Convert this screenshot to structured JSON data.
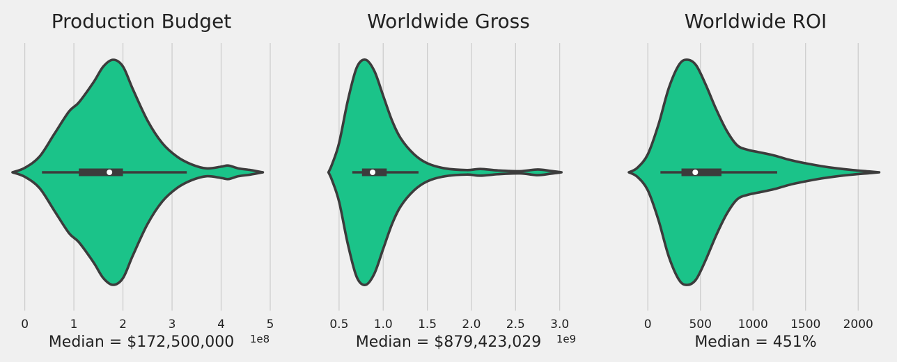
{
  "style": {
    "background": "#f0f0f0",
    "violin_fill": "#1bc389",
    "outline": "#3c3c3c",
    "grid": "#cbcbcb",
    "median_marker": "#ffffff",
    "text": "#222222"
  },
  "chart_data": [
    {
      "type": "violin",
      "title": "Production Budget",
      "xlabel": "Median = $172,500,000",
      "offset_text": "1e8",
      "xlim": [
        -0.25,
        5.0
      ],
      "ticks": [
        0,
        1,
        2,
        3,
        4,
        5
      ],
      "tick_labels": [
        "0",
        "1",
        "2",
        "3",
        "4",
        "5"
      ],
      "grid": true,
      "violin_density": [
        [
          -0.25,
          0.0
        ],
        [
          0.0,
          0.04
        ],
        [
          0.3,
          0.14
        ],
        [
          0.6,
          0.34
        ],
        [
          0.9,
          0.54
        ],
        [
          1.1,
          0.62
        ],
        [
          1.4,
          0.8
        ],
        [
          1.6,
          0.94
        ],
        [
          1.8,
          1.0
        ],
        [
          2.0,
          0.94
        ],
        [
          2.2,
          0.74
        ],
        [
          2.5,
          0.46
        ],
        [
          2.8,
          0.26
        ],
        [
          3.1,
          0.14
        ],
        [
          3.4,
          0.07
        ],
        [
          3.7,
          0.035
        ],
        [
          4.0,
          0.05
        ],
        [
          4.15,
          0.06
        ],
        [
          4.35,
          0.035
        ],
        [
          4.6,
          0.02
        ],
        [
          4.85,
          0.0
        ]
      ],
      "box": {
        "whisker_low": 0.35,
        "q1": 1.1,
        "median": 1.725,
        "q3": 2.0,
        "whisker_high": 3.3
      }
    },
    {
      "type": "violin",
      "title": "Worldwide Gross",
      "xlabel": "Median = $879,423,029",
      "offset_text": "1e9",
      "xlim": [
        0.28,
        3.2
      ],
      "ticks": [
        0.5,
        1.0,
        1.5,
        2.0,
        2.5,
        3.0
      ],
      "tick_labels": [
        "0.5",
        "1.0",
        "1.5",
        "2.0",
        "2.5",
        "3.0"
      ],
      "grid": true,
      "violin_density": [
        [
          0.38,
          0.0
        ],
        [
          0.42,
          0.07
        ],
        [
          0.5,
          0.26
        ],
        [
          0.6,
          0.64
        ],
        [
          0.7,
          0.93
        ],
        [
          0.8,
          1.0
        ],
        [
          0.9,
          0.9
        ],
        [
          1.0,
          0.68
        ],
        [
          1.1,
          0.46
        ],
        [
          1.2,
          0.3
        ],
        [
          1.35,
          0.16
        ],
        [
          1.5,
          0.08
        ],
        [
          1.7,
          0.035
        ],
        [
          1.95,
          0.02
        ],
        [
          2.1,
          0.03
        ],
        [
          2.3,
          0.017
        ],
        [
          2.55,
          0.01
        ],
        [
          2.75,
          0.025
        ],
        [
          2.9,
          0.012
        ],
        [
          3.02,
          0.0
        ]
      ],
      "box": {
        "whisker_low": 0.65,
        "q1": 0.76,
        "median": 0.88,
        "q3": 1.04,
        "whisker_high": 1.4
      }
    },
    {
      "type": "violin",
      "title": "Worldwide ROI",
      "xlabel": "Median = 451%",
      "offset_text": "",
      "xlim": [
        -200,
        2250
      ],
      "ticks": [
        0,
        500,
        1000,
        1500,
        2000
      ],
      "tick_labels": [
        "0",
        "500",
        "1000",
        "1500",
        "2000"
      ],
      "grid": true,
      "violin_density": [
        [
          -180,
          0.0
        ],
        [
          -100,
          0.04
        ],
        [
          0,
          0.16
        ],
        [
          100,
          0.42
        ],
        [
          200,
          0.75
        ],
        [
          300,
          0.96
        ],
        [
          380,
          1.0
        ],
        [
          460,
          0.95
        ],
        [
          550,
          0.78
        ],
        [
          650,
          0.56
        ],
        [
          750,
          0.37
        ],
        [
          850,
          0.24
        ],
        [
          950,
          0.2
        ],
        [
          1050,
          0.18
        ],
        [
          1200,
          0.15
        ],
        [
          1350,
          0.11
        ],
        [
          1500,
          0.08
        ],
        [
          1650,
          0.055
        ],
        [
          1800,
          0.035
        ],
        [
          1950,
          0.02
        ],
        [
          2100,
          0.008
        ],
        [
          2200,
          0.0
        ]
      ],
      "box": {
        "whisker_low": 120,
        "q1": 320,
        "median": 451,
        "q3": 700,
        "whisker_high": 1230
      }
    }
  ]
}
